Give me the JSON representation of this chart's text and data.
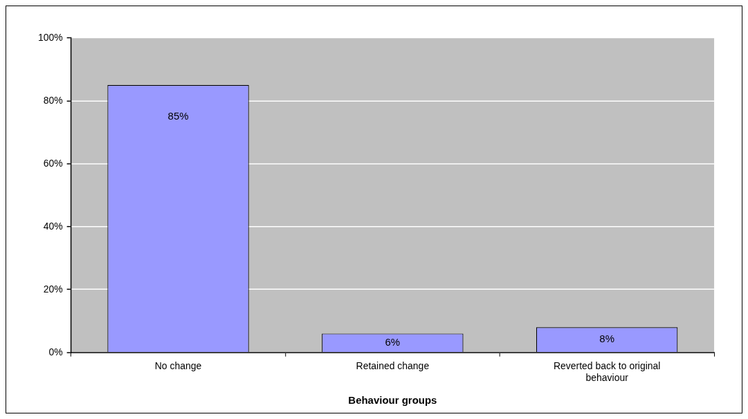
{
  "chart_data": {
    "type": "bar",
    "xlabel": "Behaviour groups",
    "categories": [
      "No change",
      "Retained change",
      "Reverted back to original behaviour"
    ],
    "values": [
      85,
      6,
      8
    ],
    "color": "#9999ff",
    "value_labels": [
      "85%",
      "6%",
      "8%"
    ],
    "ylim": [
      0,
      100
    ],
    "yticks": [
      {
        "value": 0,
        "label": "0%"
      },
      {
        "value": 20,
        "label": "20%"
      },
      {
        "value": 40,
        "label": "40%"
      },
      {
        "value": 60,
        "label": "60%"
      },
      {
        "value": 80,
        "label": "80%"
      },
      {
        "value": 100,
        "label": "100%"
      }
    ],
    "grid": "y",
    "legend": false
  }
}
